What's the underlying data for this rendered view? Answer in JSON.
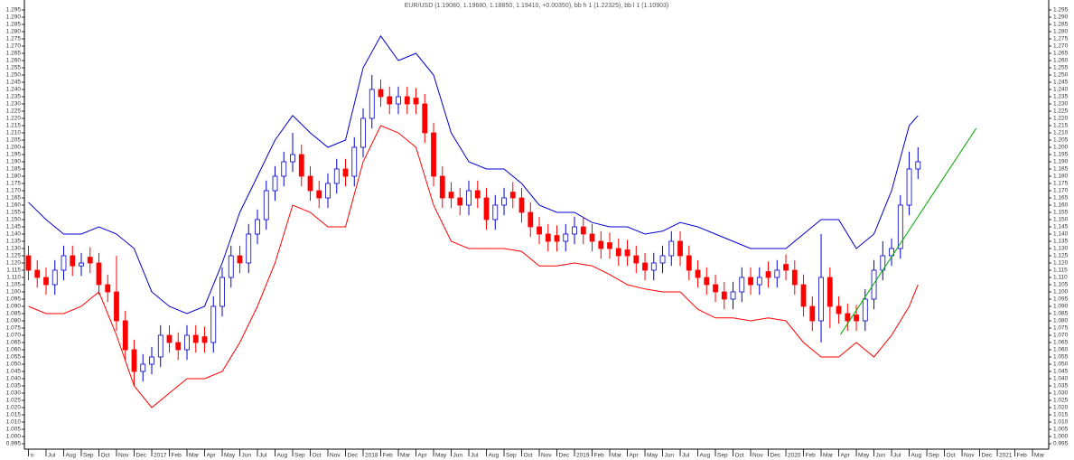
{
  "chart_data": {
    "type": "candlestick",
    "title": "EUR/USD (1.19080, 1.19680, 1.18850, 1.19410, +0.00350), bb h 1 (1.22325), bb l 1 (1.10903)",
    "ylim": [
      0.995,
      1.295
    ],
    "yticks": [
      0.995,
      {
        "value": 1,
        "label": "1.000"
      },
      1.005,
      {
        "value": 1.01,
        "label": "1.010"
      },
      1.015,
      {
        "value": 1.02,
        "label": "1.020"
      },
      1.025,
      {
        "value": 1.03,
        "label": "1.030"
      },
      1.035,
      {
        "value": 1.04,
        "label": "1.040"
      },
      1.045,
      {
        "value": 1.05,
        "label": "1.050"
      },
      1.055,
      {
        "value": 1.06,
        "label": "1.060"
      },
      1.065,
      {
        "value": 1.07,
        "label": "1.070"
      },
      1.075,
      {
        "value": 1.08,
        "label": "1.080"
      },
      1.085,
      {
        "value": 1.09,
        "label": "1.090"
      },
      1.095,
      {
        "value": 1.1,
        "label": "1.100"
      },
      1.105,
      {
        "value": 1.11,
        "label": "1.110"
      },
      1.115,
      {
        "value": 1.12,
        "label": "1.120"
      },
      1.125,
      {
        "value": 1.13,
        "label": "1.130"
      },
      1.135,
      {
        "value": 1.14,
        "label": "1.140"
      },
      1.145,
      {
        "value": 1.15,
        "label": "1.150"
      },
      1.155,
      {
        "value": 1.16,
        "label": "1.160"
      },
      1.165,
      {
        "value": 1.17,
        "label": "1.170"
      },
      1.175,
      {
        "value": 1.18,
        "label": "1.180"
      },
      1.185,
      {
        "value": 1.19,
        "label": "1.190"
      },
      1.195,
      {
        "value": 1.2,
        "label": "1.200"
      },
      1.205,
      {
        "value": 1.21,
        "label": "1.210"
      },
      1.215,
      {
        "value": 1.22,
        "label": "1.220"
      },
      1.225,
      {
        "value": 1.23,
        "label": "1.230"
      },
      1.235,
      {
        "value": 1.24,
        "label": "1.240"
      },
      1.245,
      {
        "value": 1.25,
        "label": "1.250"
      },
      1.255,
      {
        "value": 1.26,
        "label": "1.260"
      },
      1.265,
      {
        "value": 1.27,
        "label": "1.270"
      },
      1.275,
      {
        "value": 1.28,
        "label": "1.280"
      },
      1.285,
      {
        "value": 1.29,
        "label": "1.290"
      },
      1.295
    ],
    "xlim": [
      -0.23,
      57.92
    ],
    "xticks": [
      {
        "value": 0,
        "label": "n"
      },
      {
        "value": 1,
        "label": "Jul"
      },
      {
        "value": 2,
        "label": "Aug"
      },
      {
        "value": 3,
        "label": "Sep"
      },
      {
        "value": 4,
        "label": "Oct"
      },
      {
        "value": 5,
        "label": "Nov"
      },
      {
        "value": 6,
        "label": "Dec"
      },
      {
        "value": 7,
        "label": "2017"
      },
      {
        "value": 8,
        "label": "Feb"
      },
      {
        "value": 9,
        "label": "Mar"
      },
      {
        "value": 10,
        "label": "Apr"
      },
      {
        "value": 11,
        "label": "May"
      },
      {
        "value": 12,
        "label": "Jun"
      },
      {
        "value": 13,
        "label": "Jul"
      },
      {
        "value": 14,
        "label": "Aug"
      },
      {
        "value": 15,
        "label": "Sep"
      },
      {
        "value": 16,
        "label": "Oct"
      },
      {
        "value": 17,
        "label": "Nov"
      },
      {
        "value": 18,
        "label": "Dec"
      },
      {
        "value": 19,
        "label": "2018"
      },
      {
        "value": 20,
        "label": "Feb"
      },
      {
        "value": 21,
        "label": "Mar"
      },
      {
        "value": 22,
        "label": "Apr"
      },
      {
        "value": 23,
        "label": "May"
      },
      {
        "value": 24,
        "label": "Jun"
      },
      {
        "value": 25,
        "label": "Jul"
      },
      {
        "value": 26,
        "label": "Aug"
      },
      {
        "value": 27,
        "label": "Sep"
      },
      {
        "value": 28,
        "label": "Oct"
      },
      {
        "value": 29,
        "label": "Nov"
      },
      {
        "value": 30,
        "label": "Dec"
      },
      {
        "value": 31,
        "label": "2019"
      },
      {
        "value": 32,
        "label": "Feb"
      },
      {
        "value": 33,
        "label": "Mar"
      },
      {
        "value": 34,
        "label": "Apr"
      },
      {
        "value": 35,
        "label": "May"
      },
      {
        "value": 36,
        "label": "Jun"
      },
      {
        "value": 37,
        "label": "Jul"
      },
      {
        "value": 38,
        "label": "Aug"
      },
      {
        "value": 39,
        "label": "Sep"
      },
      {
        "value": 40,
        "label": "Oct"
      },
      {
        "value": 41,
        "label": "Nov"
      },
      {
        "value": 42,
        "label": "Dec"
      },
      {
        "value": 43,
        "label": "2020"
      },
      {
        "value": 44,
        "label": "Feb"
      },
      {
        "value": 45,
        "label": "Mar"
      },
      {
        "value": 46,
        "label": "Apr"
      },
      {
        "value": 47,
        "label": "May"
      },
      {
        "value": 48,
        "label": "Jun"
      },
      {
        "value": 49,
        "label": "Jul"
      },
      {
        "value": 50,
        "label": "Aug"
      },
      {
        "value": 51,
        "label": "Sep"
      },
      {
        "value": 52,
        "label": "Oct"
      },
      {
        "value": 53,
        "label": "Nov"
      },
      {
        "value": 54,
        "label": "Dec"
      },
      {
        "value": 55,
        "label": "2021"
      },
      {
        "value": 56,
        "label": "Feb"
      },
      {
        "value": 57,
        "label": "Mar"
      }
    ],
    "up_color": "#0000cc",
    "down_color": "#ff0000",
    "candles": {
      "x": [
        0,
        0.5,
        1,
        1.5,
        2,
        2.5,
        3,
        3.5,
        4,
        4.5,
        5,
        5.5,
        6,
        6.5,
        7,
        7.5,
        8,
        8.5,
        9,
        9.5,
        10,
        10.5,
        11,
        11.5,
        12,
        12.5,
        13,
        13.5,
        14,
        14.5,
        15,
        15.5,
        16,
        16.5,
        17,
        17.5,
        18,
        18.5,
        19,
        19.5,
        20,
        20.5,
        21,
        21.5,
        22,
        22.5,
        23,
        23.5,
        24,
        24.5,
        25,
        25.5,
        26,
        26.5,
        27,
        27.5,
        28,
        28.5,
        29,
        29.5,
        30,
        30.5,
        31,
        31.5,
        32,
        32.5,
        33,
        33.5,
        34,
        34.5,
        35,
        35.5,
        36,
        36.5,
        37,
        37.5,
        38,
        38.5,
        39,
        39.5,
        40,
        40.5,
        41,
        41.5,
        42,
        42.5,
        43,
        43.5,
        44,
        44.5,
        45,
        45.5,
        46,
        46.5,
        47,
        47.5,
        48,
        48.5,
        49,
        49.5,
        50,
        50.5
      ],
      "open": [
        1.125,
        1.115,
        1.11,
        1.105,
        1.115,
        1.125,
        1.118,
        1.124,
        1.12,
        1.105,
        1.1,
        1.08,
        1.06,
        1.045,
        1.05,
        1.055,
        1.07,
        1.065,
        1.06,
        1.07,
        1.069,
        1.065,
        1.09,
        1.11,
        1.125,
        1.12,
        1.14,
        1.15,
        1.17,
        1.18,
        1.19,
        1.195,
        1.18,
        1.17,
        1.165,
        1.175,
        1.185,
        1.18,
        1.2,
        1.22,
        1.24,
        1.235,
        1.23,
        1.235,
        1.234,
        1.23,
        1.21,
        1.18,
        1.169,
        1.165,
        1.16,
        1.17,
        1.165,
        1.15,
        1.16,
        1.169,
        1.165,
        1.155,
        1.145,
        1.14,
        1.139,
        1.135,
        1.14,
        1.145,
        1.14,
        1.135,
        1.134,
        1.13,
        1.129,
        1.125,
        1.12,
        1.115,
        1.12,
        1.125,
        1.135,
        1.125,
        1.115,
        1.11,
        1.105,
        1.1,
        1.095,
        1.1,
        1.11,
        1.105,
        1.114,
        1.11,
        1.119,
        1.115,
        1.105,
        1.09,
        1.08,
        1.11,
        1.09,
        1.085,
        1.084,
        1.08,
        1.095,
        1.115,
        1.125,
        1.13,
        1.16,
        1.185
      ],
      "high": [
        1.132,
        1.122,
        1.117,
        1.122,
        1.132,
        1.132,
        1.127,
        1.131,
        1.127,
        1.112,
        1.125,
        1.087,
        1.067,
        1.057,
        1.062,
        1.077,
        1.077,
        1.072,
        1.077,
        1.077,
        1.076,
        1.097,
        1.117,
        1.132,
        1.132,
        1.147,
        1.157,
        1.177,
        1.187,
        1.197,
        1.21,
        1.202,
        1.187,
        1.177,
        1.182,
        1.192,
        1.192,
        1.207,
        1.227,
        1.25,
        1.247,
        1.242,
        1.242,
        1.242,
        1.241,
        1.237,
        1.217,
        1.187,
        1.176,
        1.172,
        1.177,
        1.177,
        1.172,
        1.167,
        1.172,
        1.176,
        1.172,
        1.162,
        1.152,
        1.147,
        1.146,
        1.147,
        1.152,
        1.152,
        1.147,
        1.142,
        1.141,
        1.137,
        1.136,
        1.132,
        1.127,
        1.127,
        1.132,
        1.142,
        1.142,
        1.132,
        1.122,
        1.117,
        1.112,
        1.107,
        1.107,
        1.117,
        1.117,
        1.117,
        1.121,
        1.122,
        1.126,
        1.122,
        1.112,
        1.097,
        1.14,
        1.117,
        1.097,
        1.092,
        1.091,
        1.102,
        1.122,
        1.135,
        1.137,
        1.167,
        1.197,
        1.2
      ],
      "low": [
        1.108,
        1.103,
        1.098,
        1.098,
        1.108,
        1.111,
        1.111,
        1.113,
        1.098,
        1.093,
        1.073,
        1.053,
        1.035,
        1.038,
        1.043,
        1.048,
        1.058,
        1.053,
        1.053,
        1.058,
        1.058,
        1.058,
        1.083,
        1.103,
        1.113,
        1.113,
        1.133,
        1.143,
        1.163,
        1.173,
        1.183,
        1.173,
        1.163,
        1.158,
        1.158,
        1.168,
        1.173,
        1.173,
        1.193,
        1.213,
        1.228,
        1.223,
        1.223,
        1.223,
        1.223,
        1.203,
        1.173,
        1.158,
        1.158,
        1.153,
        1.153,
        1.158,
        1.143,
        1.143,
        1.153,
        1.158,
        1.148,
        1.138,
        1.133,
        1.128,
        1.128,
        1.128,
        1.133,
        1.133,
        1.128,
        1.123,
        1.123,
        1.118,
        1.118,
        1.113,
        1.108,
        1.108,
        1.113,
        1.118,
        1.118,
        1.108,
        1.103,
        1.098,
        1.093,
        1.088,
        1.088,
        1.093,
        1.098,
        1.098,
        1.103,
        1.103,
        1.108,
        1.098,
        1.083,
        1.073,
        1.065,
        1.075,
        1.078,
        1.073,
        1.073,
        1.073,
        1.088,
        1.108,
        1.118,
        1.123,
        1.153,
        1.178
      ],
      "close": [
        1.115,
        1.11,
        1.105,
        1.115,
        1.125,
        1.118,
        1.12,
        1.12,
        1.105,
        1.1,
        1.08,
        1.06,
        1.045,
        1.05,
        1.055,
        1.07,
        1.065,
        1.06,
        1.07,
        1.065,
        1.065,
        1.09,
        1.11,
        1.125,
        1.12,
        1.14,
        1.15,
        1.17,
        1.18,
        1.19,
        1.195,
        1.18,
        1.17,
        1.165,
        1.175,
        1.185,
        1.18,
        1.2,
        1.22,
        1.24,
        1.235,
        1.23,
        1.235,
        1.23,
        1.23,
        1.21,
        1.18,
        1.165,
        1.165,
        1.16,
        1.17,
        1.165,
        1.15,
        1.16,
        1.165,
        1.165,
        1.155,
        1.145,
        1.14,
        1.135,
        1.135,
        1.14,
        1.145,
        1.14,
        1.135,
        1.13,
        1.13,
        1.125,
        1.125,
        1.12,
        1.115,
        1.12,
        1.125,
        1.135,
        1.125,
        1.115,
        1.11,
        1.105,
        1.1,
        1.095,
        1.1,
        1.11,
        1.105,
        1.11,
        1.11,
        1.115,
        1.115,
        1.105,
        1.09,
        1.08,
        1.11,
        1.09,
        1.085,
        1.08,
        1.08,
        1.095,
        1.115,
        1.125,
        1.13,
        1.16,
        1.185,
        1.19
      ]
    },
    "upper_band": {
      "color": "#0000cc",
      "x": [
        0,
        1,
        2,
        3,
        4,
        5,
        6,
        7,
        8,
        9,
        10,
        11,
        12,
        13,
        14,
        15,
        16,
        17,
        18,
        19,
        20,
        21,
        22,
        23,
        24,
        25,
        26,
        27,
        28,
        29,
        30,
        31,
        32,
        33,
        34,
        35,
        36,
        37,
        38,
        39,
        40,
        41,
        42,
        43,
        44,
        45,
        46,
        47,
        48,
        49,
        50,
        50.5
      ],
      "values": [
        1.162,
        1.15,
        1.14,
        1.14,
        1.145,
        1.14,
        1.13,
        1.1,
        1.09,
        1.085,
        1.09,
        1.12,
        1.155,
        1.18,
        1.205,
        1.222,
        1.21,
        1.2,
        1.205,
        1.255,
        1.277,
        1.26,
        1.265,
        1.25,
        1.21,
        1.19,
        1.185,
        1.185,
        1.175,
        1.16,
        1.155,
        1.155,
        1.148,
        1.145,
        1.145,
        1.14,
        1.142,
        1.148,
        1.145,
        1.14,
        1.135,
        1.13,
        1.13,
        1.13,
        1.14,
        1.15,
        1.15,
        1.13,
        1.14,
        1.17,
        1.215,
        1.222
      ]
    },
    "lower_band": {
      "color": "#ff0000",
      "x": [
        0,
        1,
        2,
        3,
        4,
        5,
        6,
        7,
        8,
        9,
        10,
        11,
        12,
        13,
        14,
        15,
        16,
        17,
        18,
        19,
        20,
        21,
        22,
        23,
        24,
        25,
        26,
        27,
        28,
        29,
        30,
        31,
        32,
        33,
        34,
        35,
        36,
        37,
        38,
        39,
        40,
        41,
        42,
        43,
        44,
        45,
        46,
        47,
        48,
        49,
        50,
        50.5
      ],
      "values": [
        1.09,
        1.085,
        1.085,
        1.09,
        1.1,
        1.07,
        1.035,
        1.02,
        1.03,
        1.04,
        1.04,
        1.045,
        1.065,
        1.09,
        1.12,
        1.16,
        1.155,
        1.145,
        1.145,
        1.19,
        1.215,
        1.21,
        1.2,
        1.16,
        1.135,
        1.13,
        1.13,
        1.13,
        1.128,
        1.118,
        1.118,
        1.12,
        1.118,
        1.112,
        1.105,
        1.102,
        1.1,
        1.1,
        1.088,
        1.082,
        1.082,
        1.08,
        1.082,
        1.08,
        1.065,
        1.055,
        1.055,
        1.065,
        1.055,
        1.07,
        1.09,
        1.105
      ]
    },
    "trendline": {
      "color": "#00aa00",
      "x": [
        46.1,
        53.8
      ],
      "values": [
        1.0706,
        1.2131
      ]
    }
  }
}
